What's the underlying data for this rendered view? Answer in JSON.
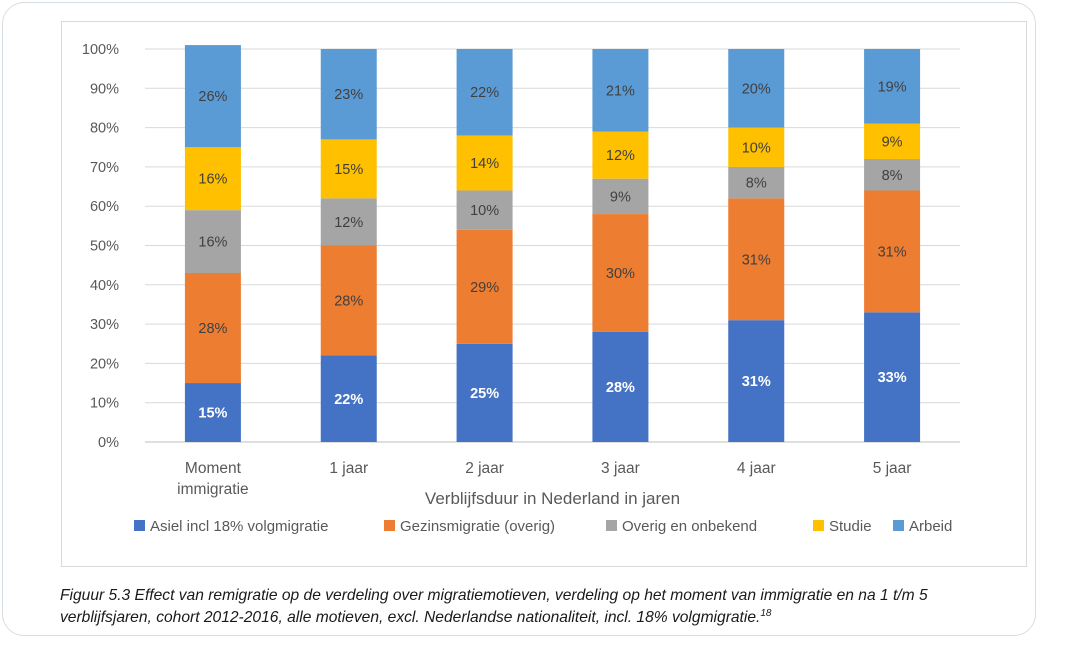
{
  "chart_data": {
    "type": "bar",
    "stacked": true,
    "categories": [
      "Moment immigratie",
      "1 jaar",
      "2 jaar",
      "3 jaar",
      "4 jaar",
      "5 jaar"
    ],
    "category_lines": [
      [
        "Moment",
        "immigratie"
      ],
      [
        "1 jaar"
      ],
      [
        "2 jaar"
      ],
      [
        "3 jaar"
      ],
      [
        "4 jaar"
      ],
      [
        "5 jaar"
      ]
    ],
    "series": [
      {
        "name": "Asiel incl 18% volgmigratie",
        "color": "#4472c4",
        "label_color": "#ffffff",
        "bold_labels": true,
        "values": [
          15,
          22,
          25,
          28,
          31,
          33
        ],
        "labels": [
          "15%",
          "22%",
          "25%",
          "28%",
          "31%",
          "33%"
        ]
      },
      {
        "name": "Gezinsmigratie (overig)",
        "color": "#ed7d31",
        "label_color": "#404040",
        "bold_labels": false,
        "values": [
          28,
          28,
          29,
          30,
          31,
          31
        ],
        "labels": [
          "28%",
          "28%",
          "29%",
          "30%",
          "31%",
          "31%"
        ]
      },
      {
        "name": "Overig en onbekend",
        "color": "#a5a5a5",
        "label_color": "#404040",
        "bold_labels": false,
        "values": [
          16,
          12,
          10,
          9,
          8,
          8
        ],
        "labels": [
          "16%",
          "12%",
          "10%",
          "9%",
          "8%",
          "8%"
        ]
      },
      {
        "name": "Studie",
        "color": "#ffc000",
        "label_color": "#404040",
        "bold_labels": false,
        "values": [
          16,
          15,
          14,
          12,
          10,
          9
        ],
        "labels": [
          "16%",
          "15%",
          "14%",
          "12%",
          "10%",
          "9%"
        ]
      },
      {
        "name": "Arbeid",
        "color": "#5b9bd5",
        "label_color": "#404040",
        "bold_labels": false,
        "values": [
          26,
          23,
          22,
          21,
          20,
          19
        ],
        "labels": [
          "26%",
          "23%",
          "22%",
          "21%",
          "20%",
          "19%"
        ]
      }
    ],
    "y_ticks": [
      "0%",
      "10%",
      "20%",
      "30%",
      "40%",
      "50%",
      "60%",
      "70%",
      "80%",
      "90%",
      "100%"
    ],
    "ylim": [
      0,
      100
    ],
    "xlabel": "Verblijfsduur in Nederland in jaren",
    "ylabel": "",
    "grid": true,
    "legend_position": "bottom"
  },
  "caption": {
    "text": "Figuur 5.3 Effect van remigratie op de verdeling over migratiemotieven, verdeling op het moment van immigratie en na 1 t/m 5 verblijfsjaren, cohort 2012-2016, alle motieven, excl. Nederlandse nationaliteit, incl. 18% volgmigratie.",
    "footnote": "18"
  }
}
